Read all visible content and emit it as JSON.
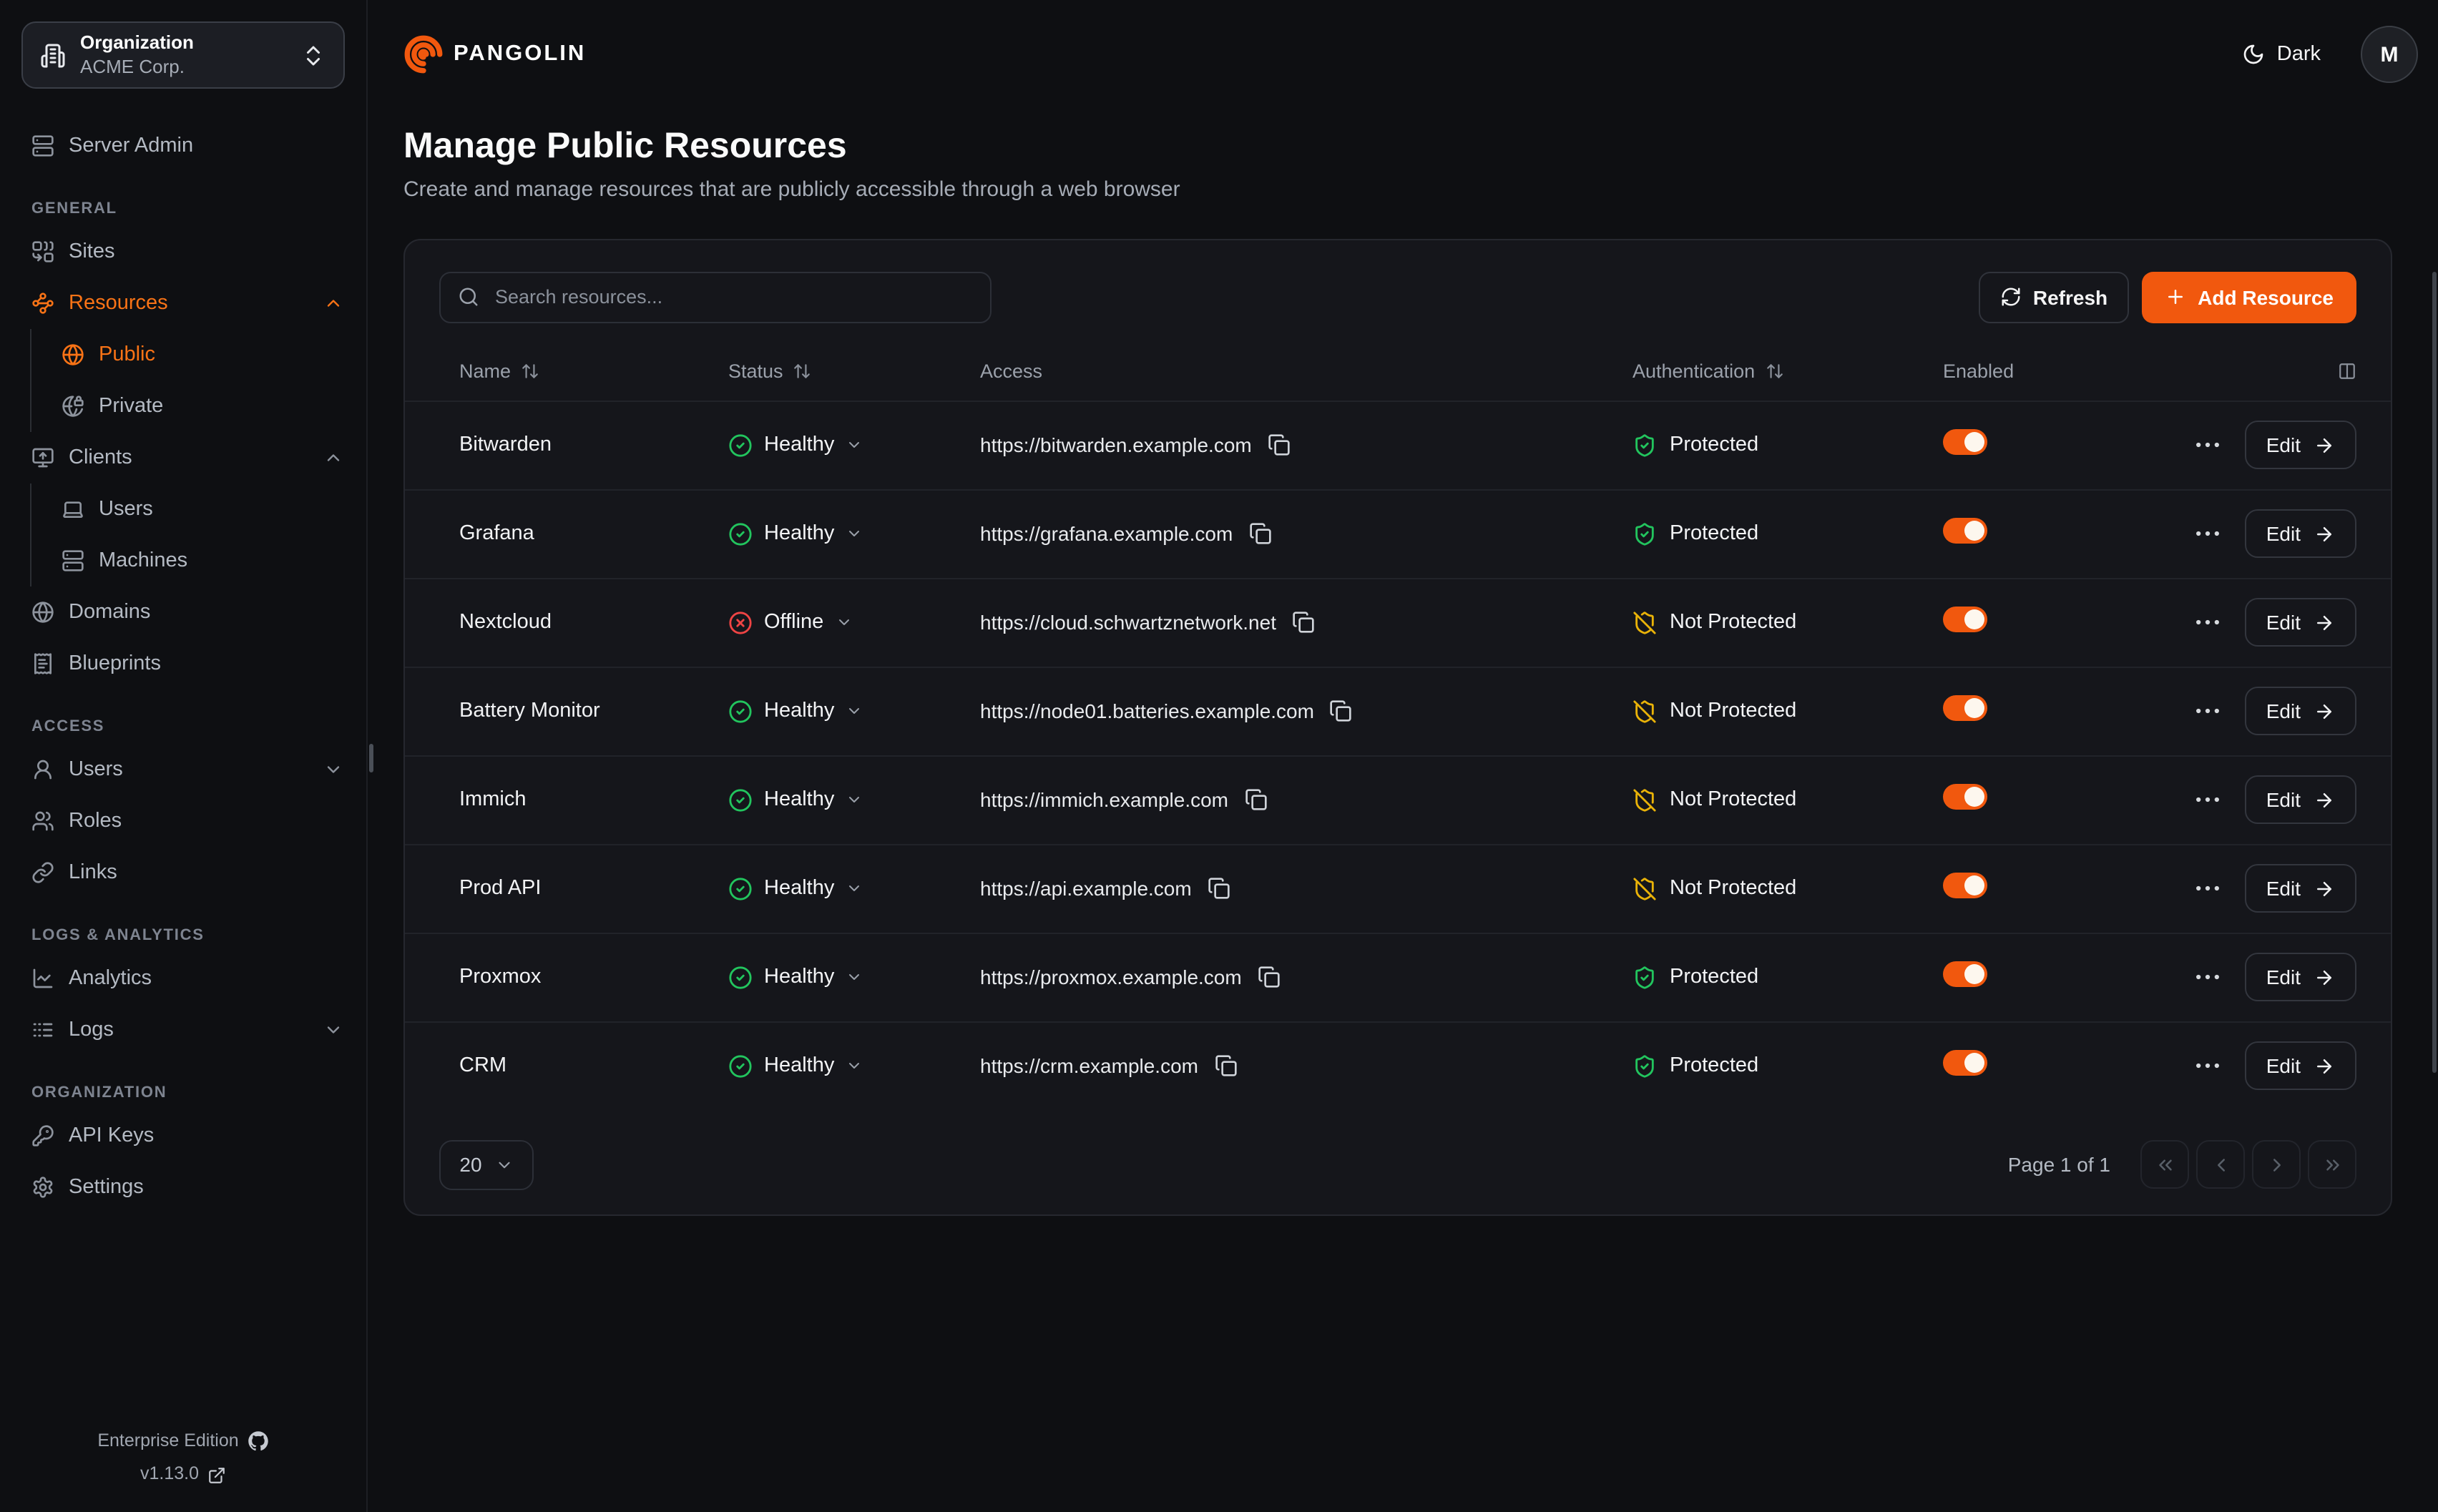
{
  "org_selector": {
    "label": "Organization",
    "value": "ACME Corp."
  },
  "sidebar": {
    "server_admin_label": "Server Admin",
    "sections": [
      {
        "label": "GENERAL",
        "items": [
          {
            "icon": "sites-icon",
            "label": "Sites"
          },
          {
            "icon": "resources-icon",
            "label": "Resources",
            "active": true,
            "chevron": "up",
            "children": [
              {
                "icon": "globe-icon",
                "label": "Public",
                "active": true
              },
              {
                "icon": "globe-lock-icon",
                "label": "Private"
              }
            ]
          },
          {
            "icon": "monitor-up-icon",
            "label": "Clients",
            "chevron": "up",
            "children": [
              {
                "icon": "laptop-icon",
                "label": "Users"
              },
              {
                "icon": "server-icon",
                "label": "Machines"
              }
            ]
          },
          {
            "icon": "globe-icon",
            "label": "Domains"
          },
          {
            "icon": "receipt-icon",
            "label": "Blueprints"
          }
        ]
      },
      {
        "label": "ACCESS",
        "items": [
          {
            "icon": "user-icon",
            "label": "Users",
            "chevron": "down"
          },
          {
            "icon": "users-icon",
            "label": "Roles"
          },
          {
            "icon": "link-icon",
            "label": "Links"
          }
        ]
      },
      {
        "label": "LOGS & ANALYTICS",
        "items": [
          {
            "icon": "chart-line-icon",
            "label": "Analytics"
          },
          {
            "icon": "logs-icon",
            "label": "Logs",
            "chevron": "down"
          }
        ]
      },
      {
        "label": "ORGANIZATION",
        "items": [
          {
            "icon": "key-icon",
            "label": "API Keys"
          },
          {
            "icon": "settings-icon",
            "label": "Settings"
          }
        ]
      }
    ],
    "footer": {
      "edition": "Enterprise Edition",
      "version": "v1.13.0"
    }
  },
  "header": {
    "brand": "PANGOLIN",
    "theme_label": "Dark",
    "avatar_initial": "M"
  },
  "page": {
    "title": "Manage Public Resources",
    "subtitle": "Create and manage resources that are publicly accessible through a web browser"
  },
  "toolbar": {
    "search_placeholder": "Search resources...",
    "refresh_label": "Refresh",
    "add_label": "Add Resource"
  },
  "table": {
    "columns": [
      {
        "label": "Name",
        "sortable": true
      },
      {
        "label": "Status",
        "sortable": true
      },
      {
        "label": "Access",
        "sortable": false
      },
      {
        "label": "Authentication",
        "sortable": true
      },
      {
        "label": "Enabled",
        "sortable": false
      }
    ],
    "edit_label": "Edit",
    "rows": [
      {
        "name": "Bitwarden",
        "status": "Healthy",
        "status_kind": "healthy",
        "url": "https://bitwarden.example.com",
        "auth": "Protected",
        "auth_kind": "protected",
        "enabled": true
      },
      {
        "name": "Grafana",
        "status": "Healthy",
        "status_kind": "healthy",
        "url": "https://grafana.example.com",
        "auth": "Protected",
        "auth_kind": "protected",
        "enabled": true
      },
      {
        "name": "Nextcloud",
        "status": "Offline",
        "status_kind": "offline",
        "url": "https://cloud.schwartznetwork.net",
        "auth": "Not Protected",
        "auth_kind": "not_protected",
        "enabled": true
      },
      {
        "name": "Battery Monitor",
        "status": "Healthy",
        "status_kind": "healthy",
        "url": "https://node01.batteries.example.com",
        "auth": "Not Protected",
        "auth_kind": "not_protected",
        "enabled": true
      },
      {
        "name": "Immich",
        "status": "Healthy",
        "status_kind": "healthy",
        "url": "https://immich.example.com",
        "auth": "Not Protected",
        "auth_kind": "not_protected",
        "enabled": true
      },
      {
        "name": "Prod API",
        "status": "Healthy",
        "status_kind": "healthy",
        "url": "https://api.example.com",
        "auth": "Not Protected",
        "auth_kind": "not_protected",
        "enabled": true
      },
      {
        "name": "Proxmox",
        "status": "Healthy",
        "status_kind": "healthy",
        "url": "https://proxmox.example.com",
        "auth": "Protected",
        "auth_kind": "protected",
        "enabled": true
      },
      {
        "name": "CRM",
        "status": "Healthy",
        "status_kind": "healthy",
        "url": "https://crm.example.com",
        "auth": "Protected",
        "auth_kind": "protected",
        "enabled": true
      }
    ]
  },
  "pagination": {
    "page_size": "20",
    "page_info": "Page 1 of 1"
  },
  "colors": {
    "accent_orange": "#f1580e",
    "nav_active_orange": "#f97316",
    "healthy_green": "#22c55e",
    "offline_red": "#ef4444",
    "unprotected_amber": "#eab308"
  }
}
